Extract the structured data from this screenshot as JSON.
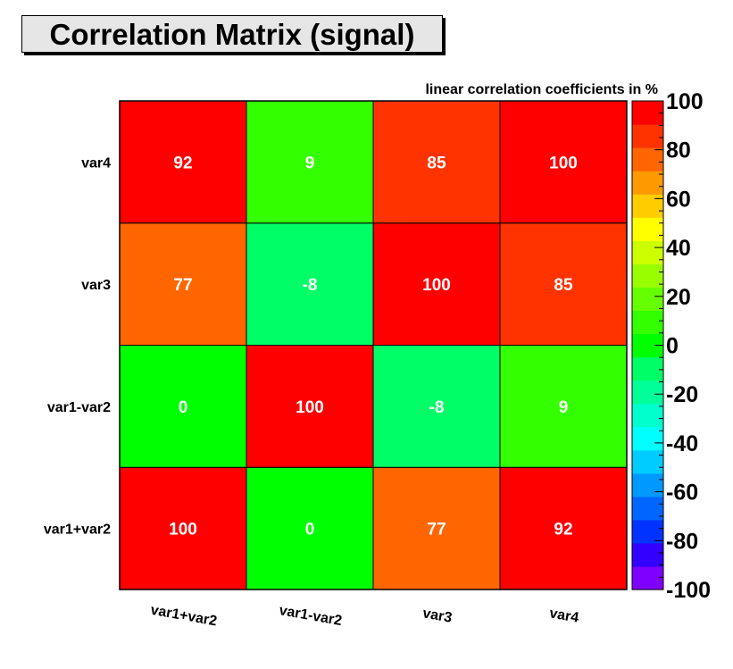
{
  "title": "Correlation Matrix (signal)",
  "chart_data": {
    "type": "heatmap",
    "title": "Correlation Matrix (signal)",
    "subtitle": "linear correlation coefficients in %",
    "x_categories": [
      "var1+var2",
      "var1-var2",
      "var3",
      "var4"
    ],
    "y_categories": [
      "var1+var2",
      "var1-var2",
      "var3",
      "var4"
    ],
    "matrix": [
      [
        100,
        0,
        77,
        92
      ],
      [
        0,
        100,
        -8,
        9
      ],
      [
        77,
        -8,
        100,
        85
      ],
      [
        92,
        9,
        85,
        100
      ]
    ],
    "zlim": [
      -100,
      100
    ],
    "colorbar_ticks": [
      "100",
      "80",
      "60",
      "40",
      "20",
      "0",
      "-20",
      "-40",
      "-60",
      "-80",
      "-100"
    ],
    "palette": [
      "#7f00ff",
      "#3300ff",
      "#0033ff",
      "#0066ff",
      "#0099ff",
      "#00ccff",
      "#00ffff",
      "#00ffcc",
      "#00ff99",
      "#00ff66",
      "#00ff00",
      "#33ff00",
      "#66ff00",
      "#99ff00",
      "#ccff00",
      "#ffff00",
      "#ffcc00",
      "#ff9900",
      "#ff6600",
      "#ff3300",
      "#ff0000"
    ]
  }
}
